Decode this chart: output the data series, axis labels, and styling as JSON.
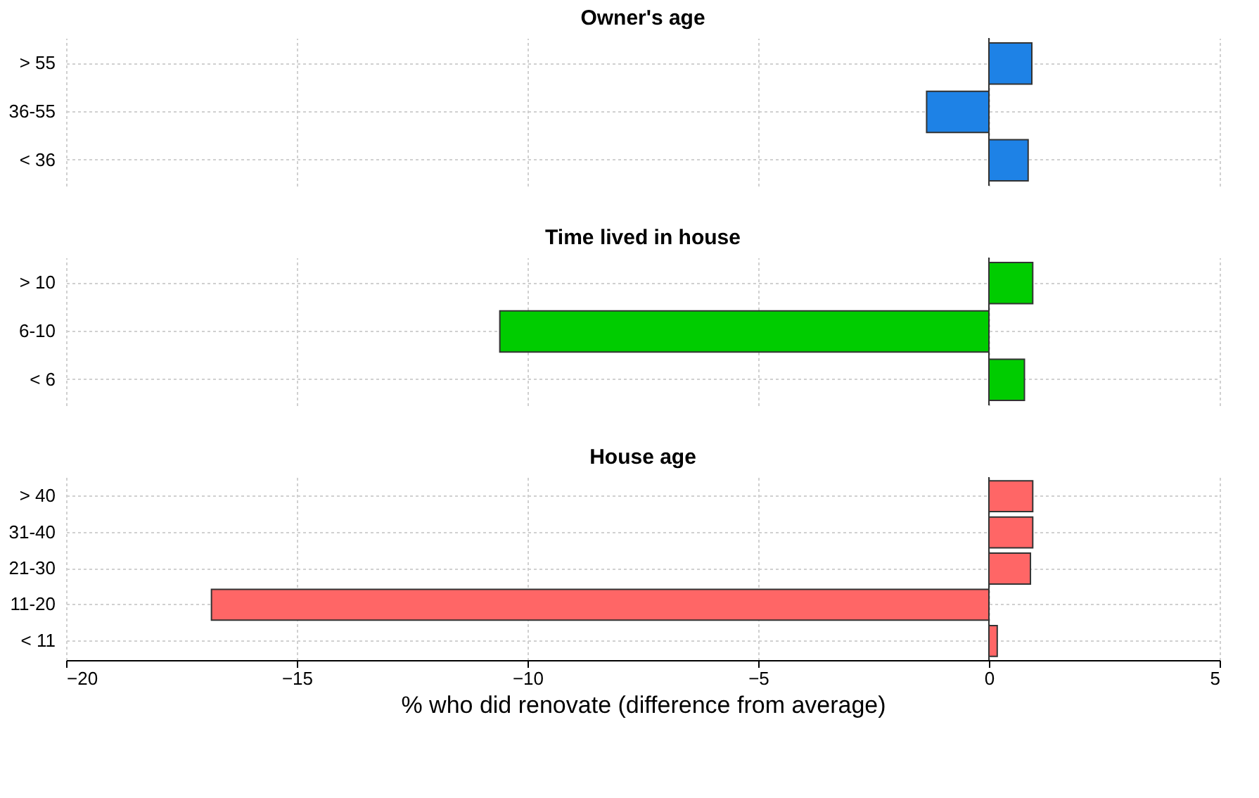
{
  "chart_data": [
    {
      "type": "bar",
      "orientation": "horizontal",
      "title": "Owner's age",
      "categories": [
        "> 55",
        "36-55",
        "< 36"
      ],
      "values": [
        0.93,
        -1.35,
        0.85
      ],
      "color": "#1e82e6",
      "xlim": [
        -20,
        5
      ],
      "xticks": [
        -20,
        -15,
        -10,
        -5,
        0,
        5
      ],
      "grid": true,
      "tick_labels": "y",
      "ref_lines": [
        {
          "axis": "x",
          "value": 0
        }
      ]
    },
    {
      "type": "bar",
      "orientation": "horizontal",
      "title": "Time lived in house",
      "categories": [
        "> 10",
        "6-10",
        "< 6"
      ],
      "values": [
        0.95,
        -10.6,
        0.77
      ],
      "color": "#00cc00",
      "xlim": [
        -20,
        5
      ],
      "xticks": [
        -20,
        -15,
        -10,
        -5,
        0,
        5
      ],
      "grid": true,
      "tick_labels": "y",
      "ref_lines": [
        {
          "axis": "x",
          "value": 0
        }
      ]
    },
    {
      "type": "bar",
      "orientation": "horizontal",
      "title": "House age",
      "xlabel": "% who did renovate (difference from average)",
      "categories": [
        "> 40",
        "31-40",
        "21-30",
        "11-20",
        "< 11"
      ],
      "values": [
        0.95,
        0.95,
        0.9,
        -16.85,
        0.18
      ],
      "color": "#ff6666",
      "xlim": [
        -20,
        5
      ],
      "xticks": [
        -20,
        -15,
        -10,
        -5,
        0,
        5
      ],
      "grid": true,
      "ref_lines": [
        {
          "axis": "x",
          "value": 0
        }
      ]
    }
  ]
}
